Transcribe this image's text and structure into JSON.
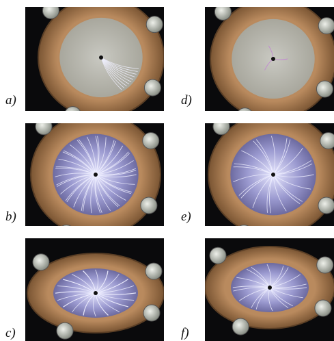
{
  "panels": [
    {
      "label": "a)"
    },
    {
      "label": "b)"
    },
    {
      "label": "c)"
    },
    {
      "label": "d)"
    },
    {
      "label": "e)"
    },
    {
      "label": "f)"
    }
  ]
}
